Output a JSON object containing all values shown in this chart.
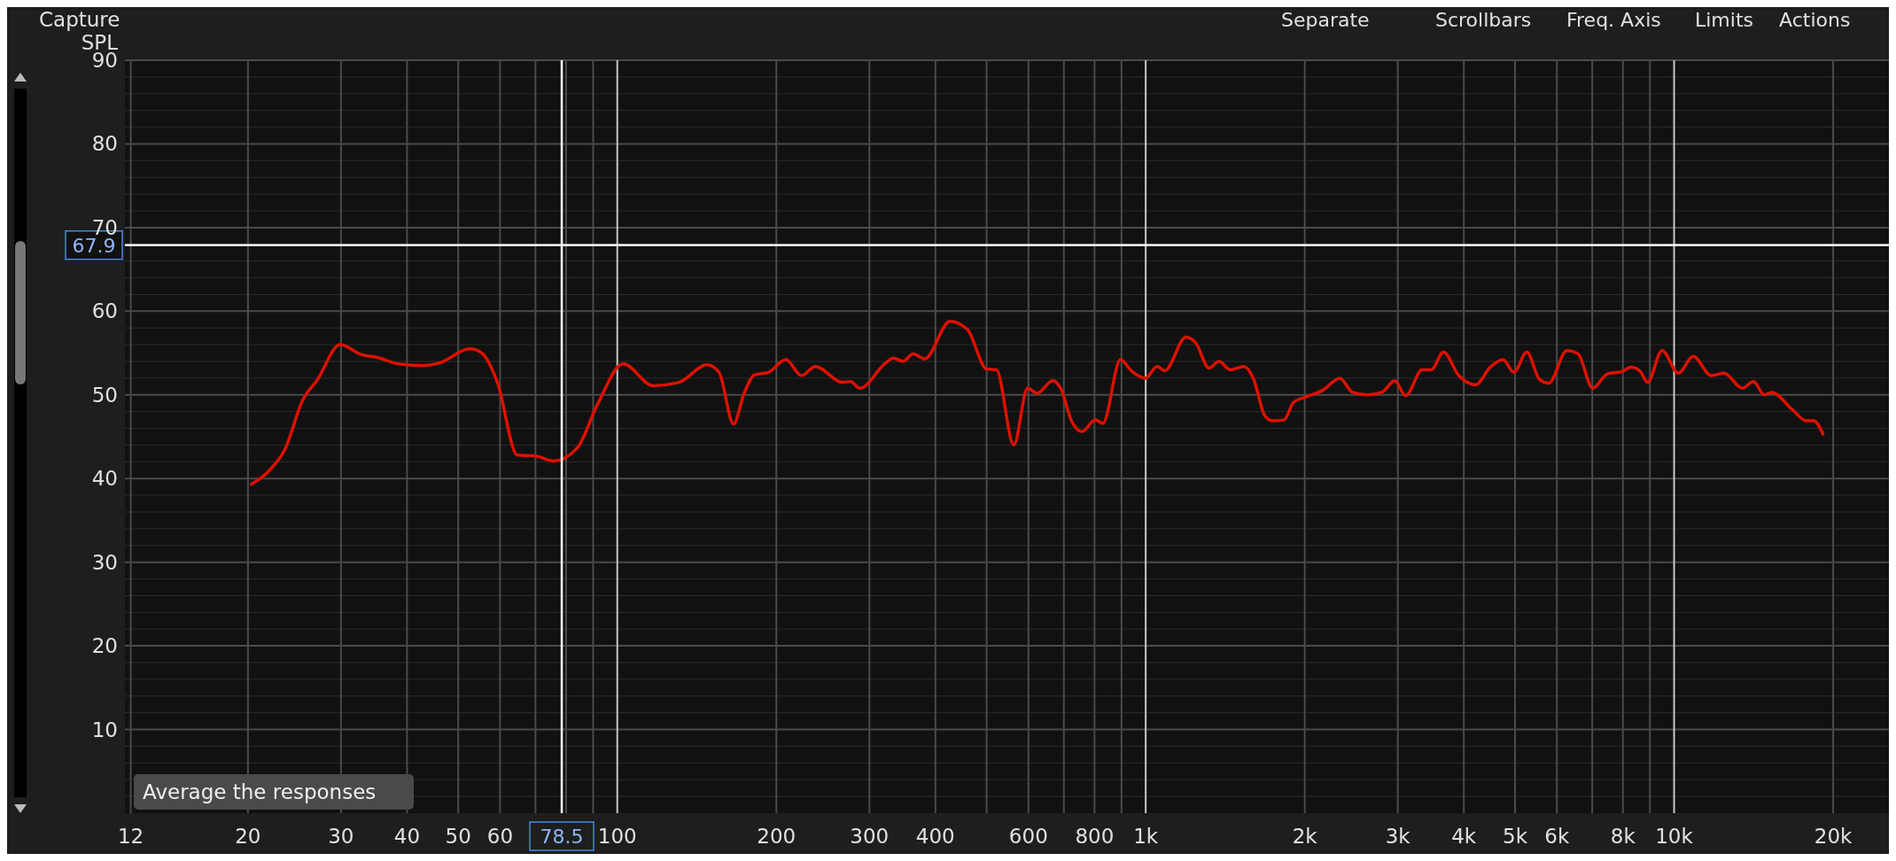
{
  "chart_data": {
    "type": "line",
    "ylabel": "SPL",
    "annotations": [
      "Capture",
      "Separate",
      "Scrollbars",
      "Freq. Axis",
      "Limits",
      "Actions",
      "Average the responses"
    ],
    "xlim": [
      11.7,
      25500
    ],
    "ylim": [
      0,
      90
    ],
    "log": "x",
    "grid": true,
    "marker": "none",
    "line_style": "solid",
    "xticks": [
      12,
      20,
      30,
      40,
      50,
      60,
      {
        "value": 70,
        "label": null
      },
      {
        "value": 80,
        "label": null
      },
      {
        "value": 90,
        "label": null
      },
      100,
      200,
      300,
      400,
      {
        "value": 500,
        "label": null
      },
      600,
      {
        "value": 700,
        "label": null
      },
      800,
      {
        "value": 900,
        "label": null
      },
      {
        "value": 1000,
        "label": "1k"
      },
      {
        "value": 2000,
        "label": "2k"
      },
      {
        "value": 3000,
        "label": "3k"
      },
      {
        "value": 4000,
        "label": "4k"
      },
      {
        "value": 5000,
        "label": "5k"
      },
      {
        "value": 6000,
        "label": "6k"
      },
      {
        "value": 7000,
        "label": null
      },
      {
        "value": 8000,
        "label": "8k"
      },
      {
        "value": 9000,
        "label": null
      },
      {
        "value": 10000,
        "label": "10k"
      },
      {
        "value": 20000,
        "label": "20k"
      }
    ],
    "yticks": [
      {
        "value": 2,
        "label": null
      },
      {
        "value": 4,
        "label": null
      },
      {
        "value": 6,
        "label": null
      },
      {
        "value": 8,
        "label": null
      },
      10,
      {
        "value": 12,
        "label": null
      },
      {
        "value": 14,
        "label": null
      },
      {
        "value": 16,
        "label": null
      },
      {
        "value": 18,
        "label": null
      },
      20,
      {
        "value": 22,
        "label": null
      },
      {
        "value": 24,
        "label": null
      },
      {
        "value": 26,
        "label": null
      },
      {
        "value": 28,
        "label": null
      },
      30,
      {
        "value": 32,
        "label": null
      },
      {
        "value": 34,
        "label": null
      },
      {
        "value": 36,
        "label": null
      },
      {
        "value": 38,
        "label": null
      },
      40,
      {
        "value": 42,
        "label": null
      },
      {
        "value": 44,
        "label": null
      },
      {
        "value": 46,
        "label": null
      },
      {
        "value": 48,
        "label": null
      },
      50,
      {
        "value": 52,
        "label": null
      },
      {
        "value": 54,
        "label": null
      },
      {
        "value": 56,
        "label": null
      },
      {
        "value": 58,
        "label": null
      },
      60,
      {
        "value": 62,
        "label": null
      },
      {
        "value": 64,
        "label": null
      },
      {
        "value": 66,
        "label": null
      },
      {
        "value": 68,
        "label": null
      },
      70,
      {
        "value": 72,
        "label": null
      },
      {
        "value": 74,
        "label": null
      },
      {
        "value": 76,
        "label": null
      },
      {
        "value": 78,
        "label": null
      },
      80,
      {
        "value": 82,
        "label": null
      },
      {
        "value": 84,
        "label": null
      },
      {
        "value": 86,
        "label": null
      },
      {
        "value": 88,
        "label": null
      },
      90
    ],
    "ref_lines": [
      {
        "axis": "y",
        "value": 67.9,
        "label": "67.9",
        "color": "#ffffff"
      },
      {
        "axis": "x",
        "value": 78.5,
        "label": "78.5",
        "color": "#ffffff"
      }
    ],
    "series": [
      {
        "color": "#dd1100",
        "x": [
          20.3,
          21.9,
          23.5,
          25.4,
          27,
          29.9,
          32.8,
          35,
          38.6,
          42.9,
          46,
          52.6,
          55.4,
          59.3,
          64.7,
          70,
          75.8,
          84.1,
          91.8,
          102.6,
          116.9,
          130.9,
          147.8,
          155.8,
          166,
          173.6,
          181.9,
          193.1,
          208.5,
          223.2,
          236.9,
          266.8,
          276.1,
          288,
          321.8,
          333.2,
          347.6,
          362.8,
          381.7,
          426.3,
          459.9,
          500,
          521.9,
          563,
          597.6,
          623,
          667,
          690,
          725,
          757,
          803,
          830,
          896,
          942,
          999,
          1051,
          1087,
          1192,
          1244,
          1318,
          1376,
          1446,
          1533,
          1598,
          1681,
          1738,
          1827,
          1905,
          2020,
          2170,
          2330,
          2463,
          2625,
          2800,
          2960,
          3105,
          3336,
          3471,
          3660,
          3915,
          4210,
          4487,
          4745,
          4975,
          5264,
          5568,
          5793,
          6270,
          6580,
          7015,
          7477,
          7972,
          8293,
          8630,
          8907,
          9489,
          10190,
          10870,
          11760,
          12430,
          13460,
          14130,
          14820,
          15300,
          16700,
          17800,
          18380,
          19130
        ],
        "values": [
          39.3,
          40.9,
          43.5,
          49.4,
          51.7,
          56,
          54.8,
          54.5,
          53.7,
          53.5,
          53.8,
          55.5,
          55,
          51.5,
          42.8,
          42.7,
          42.1,
          43.7,
          48.9,
          53.7,
          51.1,
          51.5,
          53.6,
          52.7,
          46.5,
          50.1,
          52.4,
          52.7,
          54.2,
          52.3,
          53.4,
          51.5,
          51.6,
          50.8,
          53.8,
          54.4,
          54,
          54.9,
          54.3,
          58.8,
          57.8,
          53.1,
          53,
          44,
          50.8,
          50.2,
          51.7,
          50.8,
          46.8,
          45.6,
          47,
          46.6,
          54.2,
          52.8,
          52,
          53.4,
          52.9,
          56.9,
          56.2,
          53.2,
          54,
          53,
          53.4,
          52,
          47.5,
          46.9,
          47,
          49.1,
          49.8,
          50.6,
          52,
          50.3,
          50,
          50.3,
          51.7,
          49.9,
          53,
          53,
          55.1,
          52.3,
          51.2,
          53.3,
          54.2,
          52.7,
          55.1,
          51.8,
          51.4,
          55.3,
          54.9,
          50.8,
          52.5,
          52.8,
          53.3,
          52.8,
          51.5,
          55.3,
          52.6,
          54.6,
          52.3,
          52.6,
          50.8,
          51.6,
          50,
          50.3,
          48.3,
          46.9,
          46.9,
          45.3
        ]
      }
    ]
  }
}
